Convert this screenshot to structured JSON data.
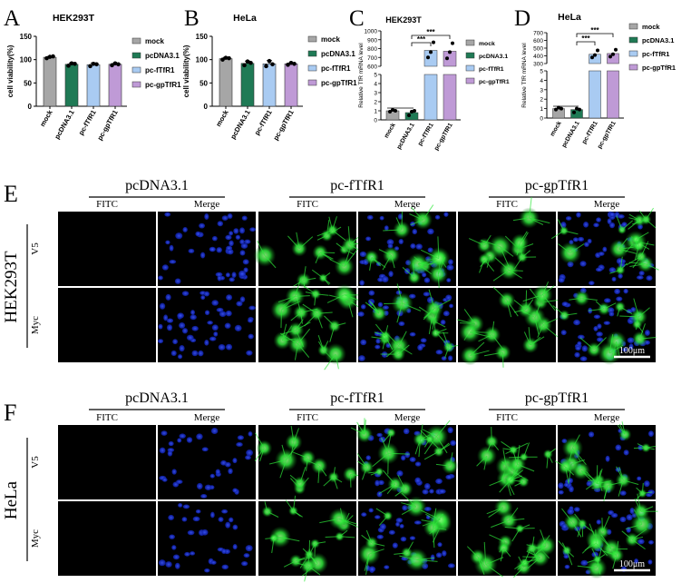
{
  "colors": {
    "mock": "#a6a6a6",
    "pcDNA3.1": "#1f7a55",
    "pc-fTfR1": "#a9cbf2",
    "pc-gpTfR1": "#bf9ad6",
    "nucleus_blue": "#1a2fd9",
    "fitc_green": "#2ee83a"
  },
  "legend_items": [
    "mock",
    "pcDNA3.1",
    "pc-fTfR1",
    "pc-gpTfR1"
  ],
  "chart_data": [
    {
      "panel": "A",
      "type": "bar",
      "title": "HEK293T",
      "ylabel": "cell viability(%)",
      "ylim": [
        0,
        150
      ],
      "yticks": [
        "0",
        "50",
        "100",
        "150"
      ],
      "categories": [
        "mock",
        "pcDNA3.1",
        "pc-fTfR1",
        "pc-gpTfR1"
      ],
      "values": [
        105,
        90,
        89,
        90
      ],
      "errors": [
        2,
        3,
        4,
        2
      ],
      "points": [
        [
          103,
          106,
          107
        ],
        [
          87,
          92,
          91
        ],
        [
          86,
          91,
          90
        ],
        [
          88,
          92,
          90
        ]
      ]
    },
    {
      "panel": "B",
      "type": "bar",
      "title": "HeLa",
      "ylabel": "cell viability(%)",
      "ylim": [
        0,
        150
      ],
      "yticks": [
        "0",
        "50",
        "100",
        "150"
      ],
      "categories": [
        "mock",
        "pcDNA3.1",
        "pc-fTfR1",
        "pc-gpTfR1"
      ],
      "values": [
        102,
        92,
        91,
        91
      ],
      "errors": [
        3,
        5,
        7,
        2
      ],
      "points": [
        [
          100,
          104,
          103
        ],
        [
          88,
          96,
          93
        ],
        [
          86,
          97,
          90
        ],
        [
          89,
          93,
          91
        ]
      ]
    },
    {
      "panel": "C",
      "type": "bar",
      "title": "HEK293T",
      "broken_axis": true,
      "ylabel": "Relative TfR mRNA level",
      "yticks_lower": [
        "0",
        "1",
        "2",
        "3",
        "4",
        "5"
      ],
      "yticks_upper": [
        "600",
        "700",
        "800",
        "900",
        "1000"
      ],
      "categories": [
        "mock",
        "pcDNA3.1",
        "pc-fTfR1",
        "pc-gpTfR1"
      ],
      "values": [
        1.0,
        0.8,
        780,
        770
      ],
      "points": [
        [
          0.9,
          1.1,
          1.0
        ],
        [
          0.5,
          0.9,
          1.0
        ],
        [
          700,
          760,
          870
        ],
        [
          690,
          760,
          860
        ]
      ],
      "significance": [
        "***",
        "***"
      ]
    },
    {
      "panel": "D",
      "type": "bar",
      "title": "HeLa",
      "broken_axis": true,
      "ylabel": "Relative TfR mRNA level",
      "yticks_lower": [
        "0",
        "1",
        "2",
        "3",
        "4",
        "5"
      ],
      "yticks_upper": [
        "300",
        "400",
        "500",
        "600",
        "700"
      ],
      "categories": [
        "mock",
        "pcDNA3.1",
        "pc-fTfR1",
        "pc-gpTfR1"
      ],
      "values": [
        1.0,
        0.9,
        420,
        430
      ],
      "points": [
        [
          0.9,
          1.1,
          1.0
        ],
        [
          0.6,
          1.0,
          0.9
        ],
        [
          380,
          410,
          470
        ],
        [
          390,
          420,
          480
        ]
      ],
      "significance": [
        "***",
        "***"
      ]
    }
  ],
  "panel_E": {
    "letter": "E",
    "cell_line": "HEK293T",
    "groups": [
      "pcDNA3.1",
      "pc-fTfR1",
      "pc-gpTfR1"
    ],
    "channels": [
      "FITC",
      "Merge",
      "FITC",
      "Merge",
      "FITC",
      "Merge"
    ],
    "rows": [
      "V5",
      "Myc"
    ],
    "scale_bar": "100μm"
  },
  "panel_F": {
    "letter": "F",
    "cell_line": "HeLa",
    "groups": [
      "pcDNA3.1",
      "pc-fTfR1",
      "pc-gpTfR1"
    ],
    "channels": [
      "FITC",
      "Merge",
      "FITC",
      "Merge",
      "FITC",
      "Merge"
    ],
    "rows": [
      "V5",
      "Myc"
    ],
    "scale_bar": "100μm"
  }
}
